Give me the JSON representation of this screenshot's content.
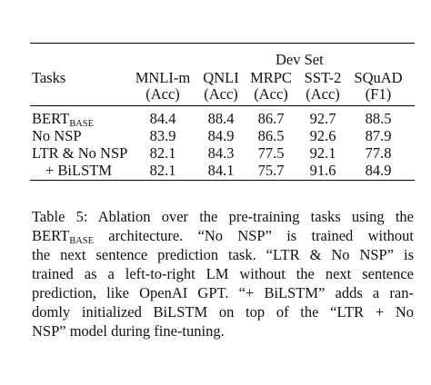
{
  "table": {
    "group_header": "Dev Set",
    "corner": "Tasks",
    "columns": [
      {
        "name": "MNLI-m",
        "metric": "(Acc)"
      },
      {
        "name": "QNLI",
        "metric": "(Acc)"
      },
      {
        "name": "MRPC",
        "metric": "(Acc)"
      },
      {
        "name": "SST-2",
        "metric": "(Acc)"
      },
      {
        "name": "SQuAD",
        "metric": "(F1)"
      }
    ],
    "rows": [
      {
        "label": "BERT",
        "label_sub": "BASE",
        "values": [
          84.4,
          88.4,
          86.7,
          92.7,
          88.5
        ]
      },
      {
        "label": "No NSP",
        "values": [
          83.9,
          84.9,
          86.5,
          92.6,
          87.9
        ]
      },
      {
        "label": "LTR & No NSP",
        "values": [
          82.1,
          84.3,
          77.5,
          92.1,
          77.8
        ]
      },
      {
        "label": "+ BiLSTM",
        "values": [
          82.1,
          84.1,
          75.7,
          91.6,
          84.9
        ]
      }
    ]
  },
  "caption": {
    "lines": [
      {
        "text": "Table 5: Ablation over the pre-training tasks using the"
      },
      {
        "text": "BERT",
        "sub": "BASE",
        "rest": " architecture. “No NSP” is trained without"
      },
      {
        "text": "the next sentence prediction task. “LTR & No NSP” is"
      },
      {
        "text": "trained as a left-to-right LM without the next sentence"
      },
      {
        "text": "prediction, like OpenAI GPT. “+ BiLSTM” adds a ran-"
      },
      {
        "text": "domly initialized BiLSTM on top of the “LTR + No"
      },
      {
        "text": "NSP” model during fine-tuning."
      }
    ]
  }
}
